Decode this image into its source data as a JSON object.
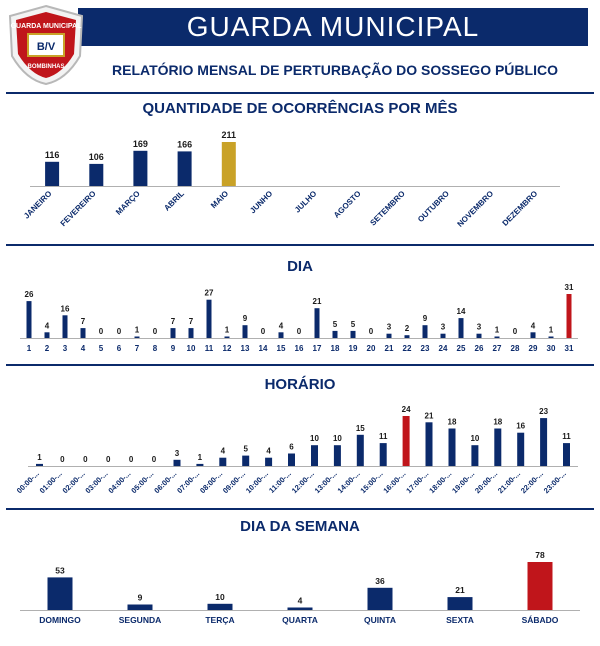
{
  "header": {
    "title": "GUARDA MUNICIPAL",
    "subtitle": "RELATÓRIO MENSAL DE PERTURBAÇÃO DO SOSSEGO PÚBLICO",
    "badge_top_text": "GUARDA MUNICIPAL",
    "badge_bottom_text": "BOMBINHAS",
    "badge_initials": "B/V"
  },
  "colors": {
    "navy": "#0b2a6b",
    "gold": "#c9a227",
    "red": "#c0151b"
  },
  "chart_data": [
    {
      "type": "bar",
      "title": "QUANTIDADE DE OCORRÊNCIAS POR MÊS",
      "categories": [
        "JANEIRO",
        "FEVEREIRO",
        "MARÇO",
        "ABRIL",
        "MAIO",
        "JUNHO",
        "JULHO",
        "AGOSTO",
        "SETEMBRO",
        "OUTUBRO",
        "NOVEMBRO",
        "DEZEMBRO"
      ],
      "values": [
        116,
        106,
        169,
        166,
        211,
        null,
        null,
        null,
        null,
        null,
        null,
        null
      ],
      "highlight": {
        "MAIO": "gold"
      },
      "ylim": [
        0,
        211
      ]
    },
    {
      "type": "bar",
      "title": "DIA",
      "categories": [
        "1",
        "2",
        "3",
        "4",
        "5",
        "6",
        "7",
        "8",
        "9",
        "10",
        "11",
        "12",
        "13",
        "14",
        "15",
        "16",
        "17",
        "18",
        "19",
        "20",
        "21",
        "22",
        "23",
        "24",
        "25",
        "26",
        "27",
        "28",
        "29",
        "30",
        "31"
      ],
      "values": [
        26,
        4,
        16,
        7,
        0,
        0,
        1,
        0,
        7,
        7,
        27,
        1,
        9,
        0,
        4,
        0,
        21,
        5,
        5,
        0,
        3,
        2,
        9,
        3,
        14,
        3,
        1,
        0,
        4,
        1,
        31
      ],
      "highlight": {
        "31": "red"
      },
      "ylim": [
        0,
        31
      ]
    },
    {
      "type": "bar",
      "title": "HORÁRIO",
      "categories": [
        "00:00-...",
        "01:00-...",
        "02:00-...",
        "03:00-...",
        "04:00-...",
        "05:00-...",
        "06:00-...",
        "07:00-...",
        "08:00-...",
        "09:00-...",
        "10:00-...",
        "11:00-...",
        "12:00-...",
        "13:00-...",
        "14:00-...",
        "15:00-...",
        "16:00-...",
        "17:00-...",
        "18:00-...",
        "19:00-...",
        "20:00-...",
        "21:00-...",
        "22:00-...",
        "23:00-..."
      ],
      "values": [
        1,
        0,
        0,
        0,
        0,
        0,
        3,
        1,
        4,
        5,
        4,
        6,
        10,
        10,
        15,
        11,
        24,
        21,
        18,
        10,
        18,
        16,
        23,
        11
      ],
      "highlight": {
        "16:00-...": "red"
      },
      "ylim": [
        0,
        24
      ]
    },
    {
      "type": "bar",
      "title": "DIA DA SEMANA",
      "categories": [
        "DOMINGO",
        "SEGUNDA",
        "TERÇA",
        "QUARTA",
        "QUINTA",
        "SEXTA",
        "SÁBADO"
      ],
      "values": [
        53,
        9,
        10,
        4,
        36,
        21,
        78
      ],
      "highlight": {
        "SÁBADO": "red"
      },
      "ylim": [
        0,
        78
      ]
    }
  ]
}
